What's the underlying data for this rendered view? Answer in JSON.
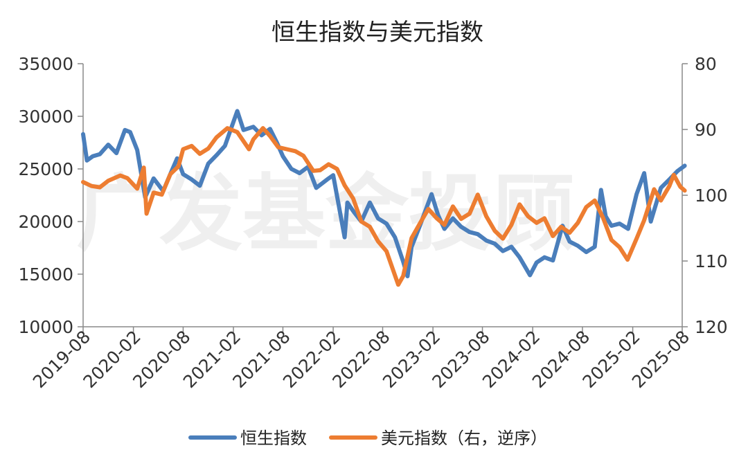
{
  "chart_data": {
    "type": "line",
    "title": "恒生指数与美元指数",
    "watermark": "广发基金投顾",
    "x_ticks": [
      "2019-08",
      "2020-02",
      "2020-08",
      "2021-02",
      "2021-08",
      "2022-02",
      "2022-08",
      "2023-02",
      "2023-08",
      "2024-02",
      "2024-08",
      "2025-02",
      "2025-08"
    ],
    "y_left": {
      "min": 10000,
      "max": 35000,
      "ticks": [
        "35000",
        "30000",
        "25000",
        "20000",
        "15000",
        "10000"
      ]
    },
    "y_right": {
      "min": 80,
      "max": 120,
      "reversed": true,
      "ticks": [
        "80",
        "90",
        "100",
        "110",
        "120"
      ]
    },
    "series": [
      {
        "name": "恒生指数",
        "axis": "left",
        "color": "#4a7ebb",
        "points": [
          [
            "2019-08-01",
            28300
          ],
          [
            "2019-08-15",
            25800
          ],
          [
            "2019-09-05",
            26200
          ],
          [
            "2019-10-01",
            26400
          ],
          [
            "2019-11-01",
            27300
          ],
          [
            "2019-12-01",
            26500
          ],
          [
            "2020-01-01",
            28700
          ],
          [
            "2020-01-20",
            28500
          ],
          [
            "2020-02-15",
            26800
          ],
          [
            "2020-03-15",
            22300
          ],
          [
            "2020-04-15",
            24100
          ],
          [
            "2020-05-20",
            22900
          ],
          [
            "2020-06-15",
            24500
          ],
          [
            "2020-07-10",
            26000
          ],
          [
            "2020-08-01",
            24500
          ],
          [
            "2020-09-01",
            24000
          ],
          [
            "2020-10-01",
            23400
          ],
          [
            "2020-11-01",
            25500
          ],
          [
            "2020-12-01",
            26300
          ],
          [
            "2021-01-01",
            27200
          ],
          [
            "2021-02-15",
            30500
          ],
          [
            "2021-03-10",
            28700
          ],
          [
            "2021-04-15",
            29000
          ],
          [
            "2021-05-15",
            28200
          ],
          [
            "2021-06-15",
            28800
          ],
          [
            "2021-07-10",
            27500
          ],
          [
            "2021-08-01",
            26200
          ],
          [
            "2021-09-01",
            25000
          ],
          [
            "2021-10-01",
            24600
          ],
          [
            "2021-11-01",
            25200
          ],
          [
            "2021-12-01",
            23200
          ],
          [
            "2022-01-10",
            24000
          ],
          [
            "2022-02-01",
            24400
          ],
          [
            "2022-03-15",
            18500
          ],
          [
            "2022-03-25",
            21800
          ],
          [
            "2022-04-15",
            21000
          ],
          [
            "2022-05-15",
            20000
          ],
          [
            "2022-06-15",
            21800
          ],
          [
            "2022-07-15",
            20300
          ],
          [
            "2022-08-15",
            19800
          ],
          [
            "2022-09-15",
            18500
          ],
          [
            "2022-10-15",
            16200
          ],
          [
            "2022-10-31",
            14800
          ],
          [
            "2022-11-15",
            17600
          ],
          [
            "2022-12-15",
            19600
          ],
          [
            "2023-01-27",
            22600
          ],
          [
            "2023-02-20",
            20600
          ],
          [
            "2023-03-15",
            19300
          ],
          [
            "2023-04-15",
            20300
          ],
          [
            "2023-05-15",
            19500
          ],
          [
            "2023-06-15",
            19000
          ],
          [
            "2023-07-15",
            18800
          ],
          [
            "2023-08-15",
            18200
          ],
          [
            "2023-09-15",
            17900
          ],
          [
            "2023-10-15",
            17200
          ],
          [
            "2023-11-15",
            17600
          ],
          [
            "2023-12-15",
            16600
          ],
          [
            "2024-01-22",
            14900
          ],
          [
            "2024-02-15",
            16100
          ],
          [
            "2024-03-15",
            16600
          ],
          [
            "2024-04-15",
            16300
          ],
          [
            "2024-05-20",
            19600
          ],
          [
            "2024-06-15",
            18100
          ],
          [
            "2024-07-15",
            17700
          ],
          [
            "2024-08-15",
            17100
          ],
          [
            "2024-09-15",
            17600
          ],
          [
            "2024-10-08",
            23000
          ],
          [
            "2024-10-25",
            20500
          ],
          [
            "2024-11-15",
            19600
          ],
          [
            "2024-12-15",
            19800
          ],
          [
            "2025-01-15",
            19300
          ],
          [
            "2025-02-15",
            22600
          ],
          [
            "2025-03-15",
            24600
          ],
          [
            "2025-04-08",
            20000
          ],
          [
            "2025-05-15",
            23200
          ],
          [
            "2025-06-15",
            24000
          ],
          [
            "2025-07-15",
            24800
          ],
          [
            "2025-08-10",
            25300
          ]
        ]
      },
      {
        "name": "美元指数（右，逆序）",
        "axis": "right",
        "color": "#ed7d31",
        "points": [
          [
            "2019-08-01",
            98.0
          ],
          [
            "2019-09-01",
            98.6
          ],
          [
            "2019-10-01",
            98.8
          ],
          [
            "2019-11-01",
            97.8
          ],
          [
            "2019-12-15",
            97.0
          ],
          [
            "2020-01-10",
            97.4
          ],
          [
            "2020-02-15",
            99.0
          ],
          [
            "2020-03-10",
            95.8
          ],
          [
            "2020-03-20",
            102.8
          ],
          [
            "2020-04-15",
            99.6
          ],
          [
            "2020-05-15",
            99.9
          ],
          [
            "2020-06-15",
            96.8
          ],
          [
            "2020-07-15",
            95.6
          ],
          [
            "2020-08-01",
            93.0
          ],
          [
            "2020-09-01",
            92.5
          ],
          [
            "2020-10-01",
            93.7
          ],
          [
            "2020-11-01",
            92.9
          ],
          [
            "2020-12-01",
            91.2
          ],
          [
            "2021-01-10",
            89.8
          ],
          [
            "2021-02-15",
            90.4
          ],
          [
            "2021-03-30",
            93.0
          ],
          [
            "2021-04-15",
            91.5
          ],
          [
            "2021-05-20",
            89.8
          ],
          [
            "2021-06-15",
            91.0
          ],
          [
            "2021-07-15",
            92.7
          ],
          [
            "2021-08-15",
            93.0
          ],
          [
            "2021-09-15",
            93.3
          ],
          [
            "2021-10-15",
            94.0
          ],
          [
            "2021-11-20",
            96.3
          ],
          [
            "2021-12-15",
            96.2
          ],
          [
            "2022-01-15",
            95.3
          ],
          [
            "2022-02-15",
            96.0
          ],
          [
            "2022-03-15",
            98.5
          ],
          [
            "2022-04-15",
            100.5
          ],
          [
            "2022-05-15",
            104.0
          ],
          [
            "2022-06-15",
            104.8
          ],
          [
            "2022-07-15",
            107.0
          ],
          [
            "2022-08-15",
            108.5
          ],
          [
            "2022-09-27",
            113.6
          ],
          [
            "2022-10-15",
            112.3
          ],
          [
            "2022-11-15",
            106.5
          ],
          [
            "2022-12-15",
            104.3
          ],
          [
            "2023-01-15",
            102.1
          ],
          [
            "2023-02-15",
            103.5
          ],
          [
            "2023-03-15",
            104.5
          ],
          [
            "2023-04-15",
            101.7
          ],
          [
            "2023-05-15",
            103.6
          ],
          [
            "2023-06-15",
            102.8
          ],
          [
            "2023-07-15",
            99.9
          ],
          [
            "2023-08-15",
            103.2
          ],
          [
            "2023-09-15",
            105.4
          ],
          [
            "2023-10-15",
            106.6
          ],
          [
            "2023-11-15",
            104.5
          ],
          [
            "2023-12-15",
            101.4
          ],
          [
            "2024-01-15",
            103.2
          ],
          [
            "2024-02-15",
            104.2
          ],
          [
            "2024-03-15",
            103.5
          ],
          [
            "2024-04-15",
            106.2
          ],
          [
            "2024-05-15",
            104.8
          ],
          [
            "2024-06-15",
            105.7
          ],
          [
            "2024-07-15",
            104.2
          ],
          [
            "2024-08-15",
            101.8
          ],
          [
            "2024-09-15",
            100.8
          ],
          [
            "2024-10-15",
            103.4
          ],
          [
            "2024-11-15",
            106.8
          ],
          [
            "2024-12-15",
            107.9
          ],
          [
            "2025-01-13",
            109.8
          ],
          [
            "2025-02-15",
            106.6
          ],
          [
            "2025-03-15",
            103.8
          ],
          [
            "2025-04-20",
            99.1
          ],
          [
            "2025-05-15",
            100.8
          ],
          [
            "2025-06-15",
            98.6
          ],
          [
            "2025-07-01",
            96.9
          ],
          [
            "2025-07-25",
            98.7
          ],
          [
            "2025-08-10",
            99.3
          ]
        ]
      }
    ]
  }
}
